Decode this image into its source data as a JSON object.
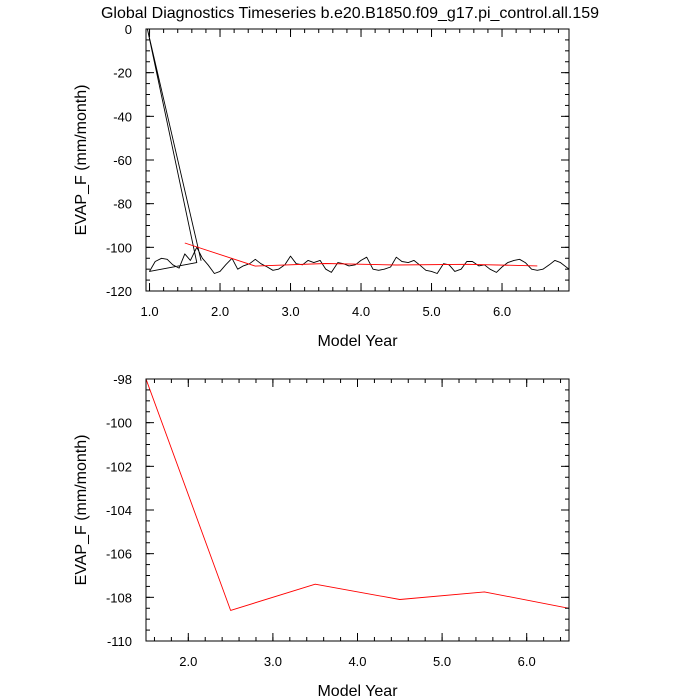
{
  "title": "Global Diagnostics Timeseries b.e20.B1850.f09_g17.pi_control.all.159",
  "colors": {
    "monthly": "#000000",
    "annual": "#ff0000",
    "frame": "#000000"
  },
  "chart_data": [
    {
      "type": "line",
      "xlabel": "Model Year",
      "ylabel": "EVAP_F (mm/month)",
      "xlim": [
        0.95,
        6.95
      ],
      "ylim": [
        -120,
        0
      ],
      "xticks": [
        1.0,
        2.0,
        3.0,
        4.0,
        5.0,
        6.0
      ],
      "xtick_labels": [
        "1.0",
        "2.0",
        "3.0",
        "4.0",
        "5.0",
        "6.0"
      ],
      "yticks": [
        0,
        -20,
        -40,
        -60,
        -80,
        -100,
        -120
      ],
      "ytick_labels": [
        "0",
        "-20",
        "-40",
        "-60",
        "-80",
        "-100",
        "-120"
      ],
      "series": [
        {
          "color": "#000000",
          "x": [
            0.97,
            1.73,
            0.97,
            1.67,
            1.0,
            1.08,
            1.17,
            1.25,
            1.33,
            1.42,
            1.5,
            1.58,
            1.67,
            1.75,
            1.83,
            1.92,
            2.0,
            2.08,
            2.17,
            2.25,
            2.33,
            2.42,
            2.5,
            2.58,
            2.67,
            2.75,
            2.83,
            2.92,
            3.0,
            3.08,
            3.17,
            3.25,
            3.33,
            3.42,
            3.5,
            3.58,
            3.67,
            3.75,
            3.83,
            3.92,
            4.0,
            4.08,
            4.17,
            4.25,
            4.33,
            4.42,
            4.5,
            4.58,
            4.67,
            4.75,
            4.83,
            4.92,
            5.0,
            5.08,
            5.17,
            5.25,
            5.33,
            5.42,
            5.5,
            5.58,
            5.67,
            5.75,
            5.83,
            5.92,
            6.0,
            6.08,
            6.17,
            6.25,
            6.33,
            6.42,
            6.5,
            6.58,
            6.67,
            6.75,
            6.83,
            6.95
          ],
          "y": [
            0,
            -106,
            0,
            -107,
            -111,
            -106.5,
            -105,
            -105.5,
            -108,
            -109.5,
            -103,
            -106,
            -100,
            -105,
            -108,
            -112,
            -111,
            -108,
            -105,
            -110,
            -108.5,
            -107.5,
            -105.5,
            -107.5,
            -109,
            -110.5,
            -110,
            -108,
            -104,
            -107.5,
            -108,
            -106,
            -107,
            -106,
            -110,
            -111.5,
            -107,
            -107.5,
            -108.5,
            -108,
            -106,
            -104.5,
            -110,
            -110.5,
            -110,
            -109,
            -104.5,
            -106.5,
            -107,
            -106,
            -108,
            -110.5,
            -111,
            -112,
            -107.5,
            -108,
            -111,
            -110,
            -106.5,
            -106.5,
            -108.5,
            -108,
            -110,
            -111.5,
            -109,
            -107,
            -106,
            -105.5,
            -107,
            -110,
            -110.5,
            -110,
            -108,
            -106,
            -107,
            -110
          ]
        },
        {
          "color": "#ff0000",
          "x": [
            1.5,
            2.5,
            3.5,
            4.5,
            5.5,
            6.5
          ],
          "y": [
            -98,
            -108.6,
            -107.4,
            -108.1,
            -107.75,
            -108.5
          ]
        }
      ]
    },
    {
      "type": "line",
      "xlabel": "Model Year",
      "ylabel": "EVAP_F (mm/month)",
      "xlim": [
        1.5,
        6.5
      ],
      "ylim": [
        -110,
        -98
      ],
      "xticks": [
        2.0,
        3.0,
        4.0,
        5.0,
        6.0
      ],
      "xtick_labels": [
        "2.0",
        "3.0",
        "4.0",
        "5.0",
        "6.0"
      ],
      "yticks": [
        -98,
        -100,
        -102,
        -104,
        -106,
        -108,
        -110
      ],
      "ytick_labels": [
        "-98",
        "-100",
        "-102",
        "-104",
        "-106",
        "-108",
        "-110"
      ],
      "series": [
        {
          "color": "#ff0000",
          "x": [
            1.5,
            2.5,
            3.5,
            4.5,
            5.5,
            6.5
          ],
          "y": [
            -98,
            -108.6,
            -107.4,
            -108.1,
            -107.75,
            -108.5
          ]
        }
      ]
    }
  ]
}
